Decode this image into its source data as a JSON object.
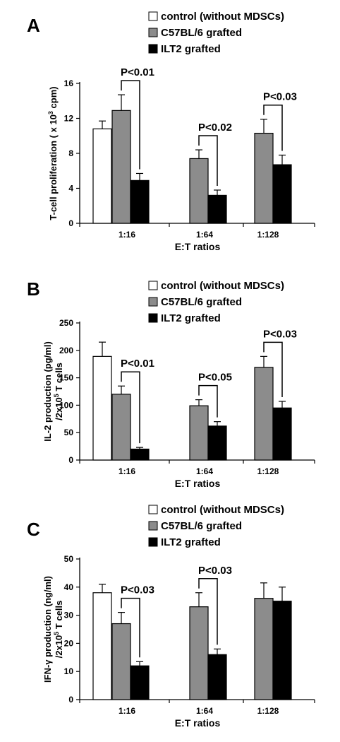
{
  "colors": {
    "control": "#ffffff",
    "c57": "#8c8c8c",
    "ilt2": "#000000",
    "axis": "#000000"
  },
  "legend": [
    {
      "label": "control (without MDSCs)",
      "series": "control"
    },
    {
      "label": "C57BL/6 grafted",
      "series": "c57"
    },
    {
      "label": "ILT2 grafted",
      "series": "ilt2"
    }
  ],
  "panels": [
    {
      "letter": "A",
      "ylabel_line1": "T-cell proliferation ( x 10",
      "ylabel_sup": "3",
      "ylabel_line1_end": " cpm)",
      "ylabel_line2": "",
      "xlabel": "E:T ratios"
    },
    {
      "letter": "B",
      "ylabel_line1": "IL-2 production (pg/ml)",
      "ylabel_sup": "",
      "ylabel_line1_end": "",
      "ylabel_line2": "/2x10",
      "ylabel_line2_sup": "5",
      "ylabel_line2_end": " T cells",
      "xlabel": "E:T ratios"
    },
    {
      "letter": "C",
      "ylabel_line1": "IFN-γ production (ng/ml)",
      "ylabel_sup": "",
      "ylabel_line1_end": "",
      "ylabel_line2": "/2x10",
      "ylabel_line2_sup": "5",
      "ylabel_line2_end": " T cells",
      "xlabel": "E:T ratios"
    }
  ],
  "chart_data": [
    {
      "type": "bar",
      "categories": [
        "1:16",
        "1:64",
        "1:128"
      ],
      "ylim": [
        0,
        16
      ],
      "yticks": [
        0,
        4,
        8,
        12,
        16
      ],
      "series": [
        {
          "name": "control (without MDSCs)",
          "key": "control",
          "values": [
            10.8,
            null,
            null
          ],
          "errors": [
            0.9,
            null,
            null
          ]
        },
        {
          "name": "C57BL/6 grafted",
          "key": "c57",
          "values": [
            12.9,
            7.4,
            10.3
          ],
          "errors": [
            1.8,
            1.0,
            1.6
          ]
        },
        {
          "name": "ILT2 grafted",
          "key": "ilt2",
          "values": [
            4.9,
            3.2,
            6.7
          ],
          "errors": [
            0.8,
            0.6,
            1.1
          ]
        }
      ],
      "significance": [
        {
          "label": "P<0.01",
          "category": 0
        },
        {
          "label": "P<0.02",
          "category": 1
        },
        {
          "label": "P<0.03",
          "category": 2
        }
      ]
    },
    {
      "type": "bar",
      "categories": [
        "1:16",
        "1:64",
        "1:128"
      ],
      "ylim": [
        0,
        250
      ],
      "yticks": [
        0,
        50,
        100,
        150,
        200,
        250
      ],
      "series": [
        {
          "name": "control (without MDSCs)",
          "key": "control",
          "values": [
            189,
            null,
            null
          ],
          "errors": [
            26,
            null,
            null
          ]
        },
        {
          "name": "C57BL/6 grafted",
          "key": "c57",
          "values": [
            120,
            99,
            169
          ],
          "errors": [
            15,
            11,
            20
          ]
        },
        {
          "name": "ILT2 grafted",
          "key": "ilt2",
          "values": [
            20,
            62,
            95
          ],
          "errors": [
            3,
            8,
            12
          ]
        }
      ],
      "significance": [
        {
          "label": "P<0.01",
          "category": 0
        },
        {
          "label": "P<0.05",
          "category": 1
        },
        {
          "label": "P<0.03",
          "category": 2
        }
      ]
    },
    {
      "type": "bar",
      "categories": [
        "1:16",
        "1:64",
        "1:128"
      ],
      "ylim": [
        0,
        50
      ],
      "yticks": [
        0,
        10,
        20,
        30,
        40,
        50
      ],
      "series": [
        {
          "name": "control (without MDSCs)",
          "key": "control",
          "values": [
            38,
            null,
            null
          ],
          "errors": [
            3,
            null,
            null
          ]
        },
        {
          "name": "C57BL/6 grafted",
          "key": "c57",
          "values": [
            27,
            33,
            36
          ],
          "errors": [
            4,
            5,
            5.5
          ]
        },
        {
          "name": "ILT2 grafted",
          "key": "ilt2",
          "values": [
            12,
            16,
            35
          ],
          "errors": [
            1.5,
            2,
            5
          ]
        }
      ],
      "significance": [
        {
          "label": "P<0.03",
          "category": 0
        },
        {
          "label": "P<0.03",
          "category": 1
        }
      ]
    }
  ]
}
